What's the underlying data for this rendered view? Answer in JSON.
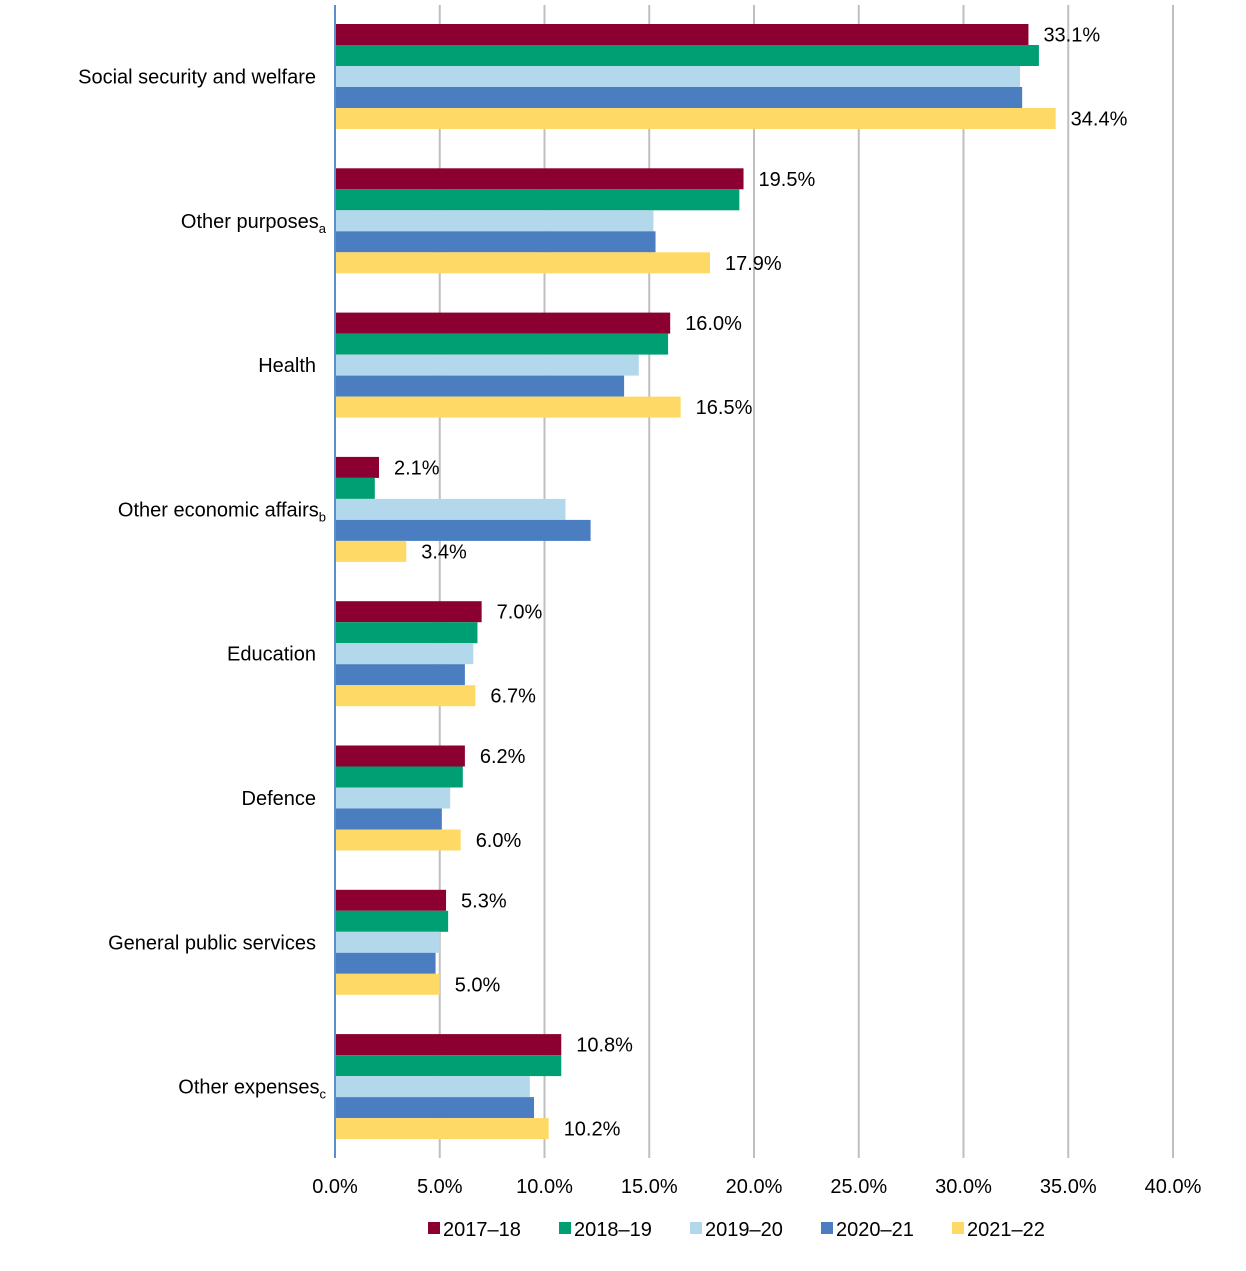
{
  "chart_data": {
    "type": "bar",
    "orientation": "horizontal",
    "categories": [
      {
        "label": "Social security and welfare",
        "sub": ""
      },
      {
        "label": "Other purposes",
        "sub": "a"
      },
      {
        "label": "Health",
        "sub": ""
      },
      {
        "label": "Other economic affairs",
        "sub": "b"
      },
      {
        "label": "Education",
        "sub": ""
      },
      {
        "label": "Defence",
        "sub": ""
      },
      {
        "label": "General public services",
        "sub": ""
      },
      {
        "label": "Other expenses",
        "sub": "c"
      }
    ],
    "series": [
      {
        "name": "2017–18",
        "color": "#8B0030",
        "values": [
          33.1,
          19.5,
          16.0,
          2.1,
          7.0,
          6.2,
          5.3,
          10.8
        ]
      },
      {
        "name": "2018–19",
        "color": "#009E73",
        "values": [
          33.6,
          19.3,
          15.9,
          1.9,
          6.8,
          6.1,
          5.4,
          10.8
        ]
      },
      {
        "name": "2019–20",
        "color": "#B3D8EC",
        "values": [
          32.7,
          15.2,
          14.5,
          11.0,
          6.6,
          5.5,
          5.0,
          9.3
        ]
      },
      {
        "name": "2020–21",
        "color": "#4A7EC1",
        "values": [
          32.8,
          15.3,
          13.8,
          12.2,
          6.2,
          5.1,
          4.8,
          9.5
        ]
      },
      {
        "name": "2021–22",
        "color": "#FFD966",
        "values": [
          34.4,
          17.9,
          16.5,
          3.4,
          6.7,
          6.0,
          5.0,
          10.2
        ]
      }
    ],
    "data_labels": [
      {
        "category_index": 0,
        "series_index": 0,
        "text": "33.1%"
      },
      {
        "category_index": 0,
        "series_index": 4,
        "text": "34.4%"
      },
      {
        "category_index": 1,
        "series_index": 0,
        "text": "19.5%"
      },
      {
        "category_index": 1,
        "series_index": 4,
        "text": "17.9%"
      },
      {
        "category_index": 2,
        "series_index": 0,
        "text": "16.0%"
      },
      {
        "category_index": 2,
        "series_index": 4,
        "text": "16.5%"
      },
      {
        "category_index": 3,
        "series_index": 0,
        "text": "2.1%"
      },
      {
        "category_index": 3,
        "series_index": 4,
        "text": "3.4%"
      },
      {
        "category_index": 4,
        "series_index": 0,
        "text": "7.0%"
      },
      {
        "category_index": 4,
        "series_index": 4,
        "text": "6.7%"
      },
      {
        "category_index": 5,
        "series_index": 0,
        "text": "6.2%"
      },
      {
        "category_index": 5,
        "series_index": 4,
        "text": "6.0%"
      },
      {
        "category_index": 6,
        "series_index": 0,
        "text": "5.3%"
      },
      {
        "category_index": 6,
        "series_index": 4,
        "text": "5.0%"
      },
      {
        "category_index": 7,
        "series_index": 0,
        "text": "10.8%"
      },
      {
        "category_index": 7,
        "series_index": 4,
        "text": "10.2%"
      }
    ],
    "x_ticks": [
      "0.0%",
      "5.0%",
      "10.0%",
      "15.0%",
      "20.0%",
      "25.0%",
      "30.0%",
      "35.0%",
      "40.0%"
    ],
    "xlim": [
      0,
      40
    ],
    "tick_step": 5,
    "title": "",
    "xlabel": "",
    "ylabel": "",
    "grid": "vertical",
    "grid_color": "#BFBFBF",
    "axis_color": "#5B8FC9",
    "legend_position": "bottom"
  }
}
